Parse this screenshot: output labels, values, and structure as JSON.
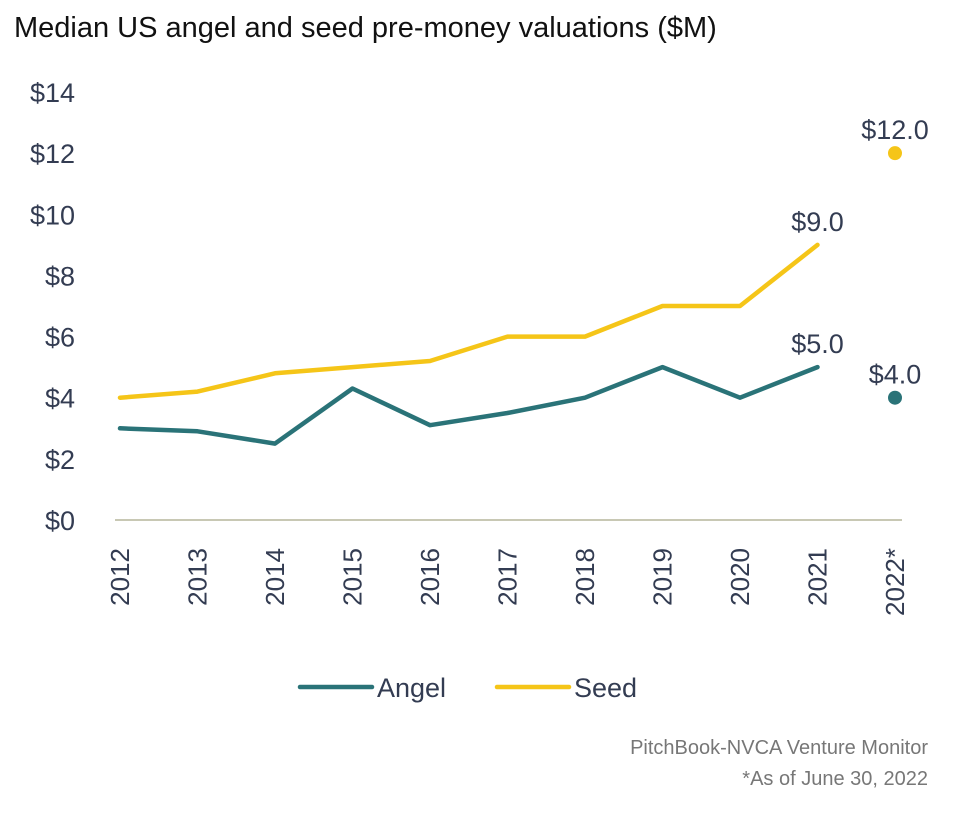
{
  "chart_data": {
    "type": "line",
    "title": "Median US angel and seed pre-money valuations ($M)",
    "categories": [
      "2012",
      "2013",
      "2014",
      "2015",
      "2016",
      "2017",
      "2018",
      "2019",
      "2020",
      "2021",
      "2022*"
    ],
    "ylim": [
      0,
      14
    ],
    "yticks": [
      "$0",
      "$2",
      "$4",
      "$6",
      "$8",
      "$10",
      "$12",
      "$14"
    ],
    "series": [
      {
        "name": "Angel",
        "color": "#2a7378",
        "values": [
          3.0,
          2.9,
          2.5,
          4.3,
          3.1,
          3.5,
          4.0,
          5.0,
          4.0,
          5.0,
          4.0
        ],
        "labels": {
          "9": "$5.0",
          "10": "$4.0"
        }
      },
      {
        "name": "Seed",
        "color": "#f5c518",
        "values": [
          4.0,
          4.2,
          4.8,
          5.0,
          5.2,
          6.0,
          6.0,
          7.0,
          7.0,
          9.0,
          12.0
        ],
        "labels": {
          "9": "$9.0",
          "10": "$12.0"
        }
      }
    ],
    "point_only_last": true,
    "legend_position": "bottom",
    "grid": false
  },
  "source": "PitchBook-NVCA Venture Monitor",
  "note": "*As of June 30, 2022"
}
